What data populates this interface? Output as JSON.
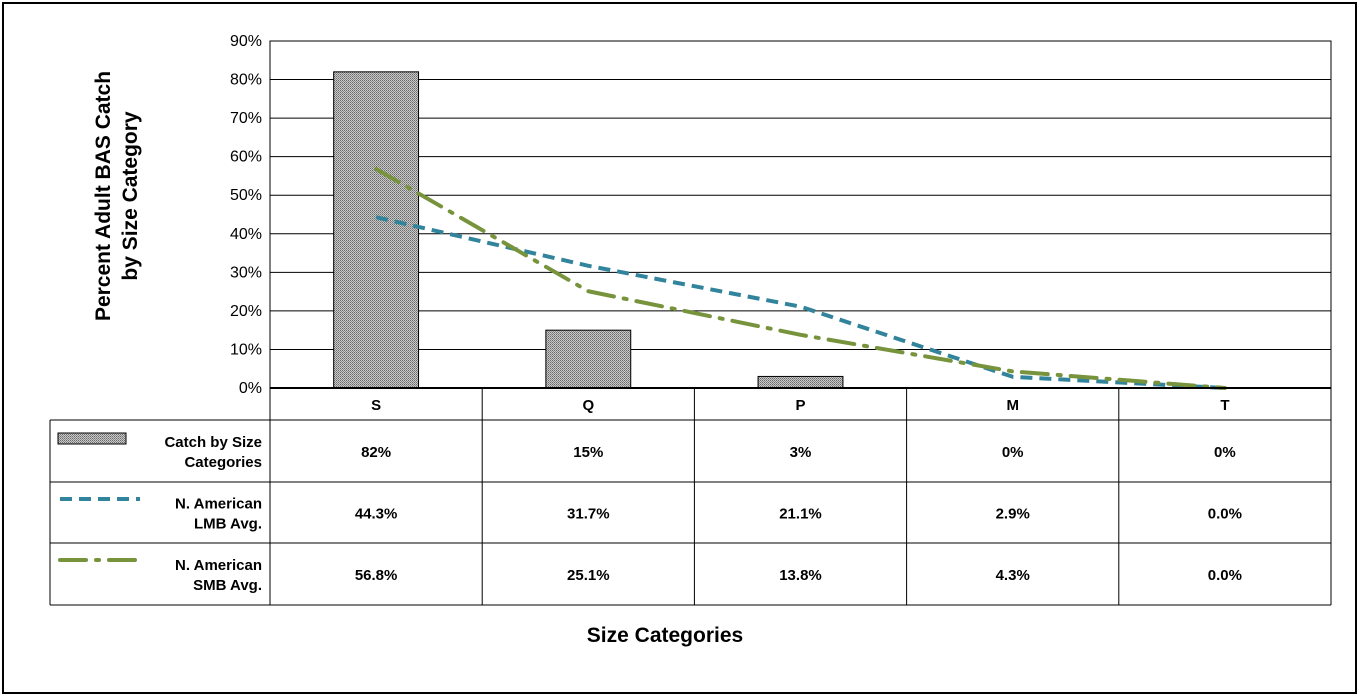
{
  "chart_data": {
    "type": "bar",
    "categories": [
      "S",
      "Q",
      "P",
      "M",
      "T"
    ],
    "ylabel_line1": "Percent Adult BAS Catch",
    "ylabel_line2": "by Size Category",
    "xlabel": "Size Categories",
    "ylim": [
      0,
      90
    ],
    "yticks": [
      0,
      10,
      20,
      30,
      40,
      50,
      60,
      70,
      80,
      90
    ],
    "ytick_labels": [
      "0%",
      "10%",
      "20%",
      "30%",
      "40%",
      "50%",
      "60%",
      "70%",
      "80%",
      "90%"
    ],
    "grid": true,
    "legend_placement": "data-table",
    "series": [
      {
        "name_line1": "Catch by Size",
        "name_line2": "Categories",
        "kind": "bar",
        "values": [
          82,
          15,
          3,
          0,
          0
        ],
        "table_labels": [
          "82%",
          "15%",
          "3%",
          "0%",
          "0%"
        ],
        "color": "#a8a8a8"
      },
      {
        "name_line1": "N. American",
        "name_line2": "LMB Avg.",
        "kind": "line",
        "style": "dashed",
        "values": [
          44.3,
          31.7,
          21.1,
          2.9,
          0.0
        ],
        "table_labels": [
          "44.3%",
          "31.7%",
          "21.1%",
          "2.9%",
          "0.0%"
        ],
        "color": "#31849b"
      },
      {
        "name_line1": "N. American",
        "name_line2": "SMB Avg.",
        "kind": "line",
        "style": "dash-dot",
        "values": [
          56.8,
          25.1,
          13.8,
          4.3,
          0.0
        ],
        "table_labels": [
          "56.8%",
          "25.1%",
          "13.8%",
          "4.3%",
          "0.0%"
        ],
        "color": "#77933c"
      }
    ]
  }
}
